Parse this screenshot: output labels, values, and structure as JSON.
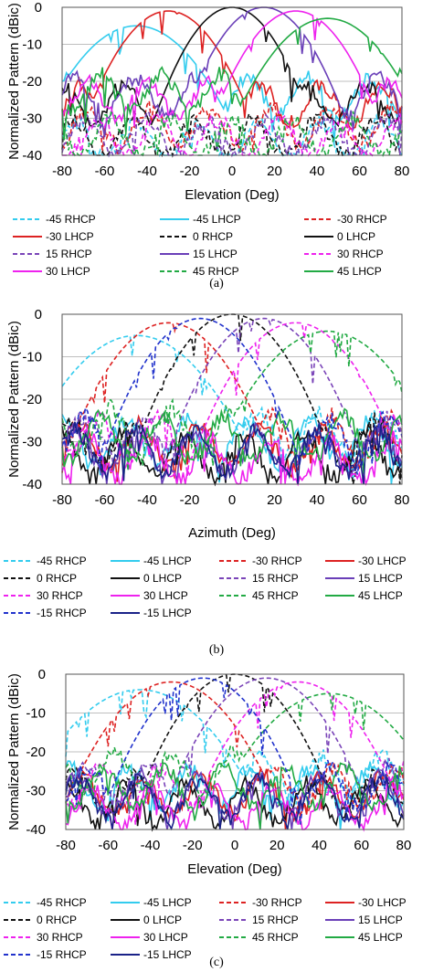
{
  "chart_data": [
    {
      "type": "line",
      "ylabel": "Normalized Pattern (dBic)",
      "xlabel": "Elevation (Deg)",
      "xlim": [
        -80,
        80
      ],
      "ylim": [
        -40,
        0
      ],
      "xticks": [
        -80,
        -60,
        -40,
        -20,
        0,
        20,
        40,
        60,
        80
      ],
      "yticks": [
        0,
        -10,
        -20,
        -30,
        -40
      ],
      "caption": "(a)",
      "series": [
        {
          "name": "-45 RHCP",
          "color": "#33ccee",
          "dashed": true,
          "peak": -45,
          "peak_level": -100,
          "floor": -34,
          "width": 50
        },
        {
          "name": "-45 LHCP",
          "color": "#33ccee",
          "dashed": false,
          "peak": -45,
          "peak_level": -5,
          "floor": -22,
          "width": 60
        },
        {
          "name": "-30 RHCP",
          "color": "#dd2222",
          "dashed": true,
          "peak": -30,
          "peak_level": -100,
          "floor": -30,
          "width": 50
        },
        {
          "name": "-30 LHCP",
          "color": "#dd2222",
          "dashed": false,
          "peak": -30,
          "peak_level": -1,
          "floor": -24,
          "width": 50
        },
        {
          "name": "0 RHCP",
          "color": "#111111",
          "dashed": true,
          "peak": 0,
          "peak_level": -100,
          "floor": -33,
          "width": 50
        },
        {
          "name": "0 LHCP",
          "color": "#111111",
          "dashed": false,
          "peak": 0,
          "peak_level": 0,
          "floor": -24,
          "width": 46
        },
        {
          "name": "15 RHCP",
          "color": "#7a44b8",
          "dashed": true,
          "peak": 15,
          "peak_level": -100,
          "floor": -33,
          "width": 50
        },
        {
          "name": "15 LHCP",
          "color": "#6a3fb8",
          "dashed": false,
          "peak": 15,
          "peak_level": 0,
          "floor": -22,
          "width": 48
        },
        {
          "name": "30 RHCP",
          "color": "#ee22ee",
          "dashed": true,
          "peak": 30,
          "peak_level": -100,
          "floor": -33,
          "width": 50
        },
        {
          "name": "30 LHCP",
          "color": "#ee22ee",
          "dashed": false,
          "peak": 30,
          "peak_level": -1,
          "floor": -23,
          "width": 50
        },
        {
          "name": "45 RHCP",
          "color": "#22aa44",
          "dashed": true,
          "peak": 45,
          "peak_level": -100,
          "floor": -33,
          "width": 50
        },
        {
          "name": "45 LHCP",
          "color": "#22aa44",
          "dashed": false,
          "peak": 45,
          "peak_level": -3,
          "floor": -21,
          "width": 58
        }
      ]
    },
    {
      "type": "line",
      "ylabel": "Normalized Pattern   (dBic)",
      "xlabel": "Azimuth (Deg)",
      "xlim": [
        -80,
        80
      ],
      "ylim": [
        -40,
        0
      ],
      "xticks": [
        -80,
        -60,
        -40,
        -20,
        0,
        20,
        40,
        60,
        80
      ],
      "yticks": [
        0,
        -10,
        -20,
        -30,
        -40
      ],
      "caption": "(b)",
      "series": [
        {
          "name": "-45 RHCP",
          "color": "#33ccee",
          "dashed": true,
          "peak": -45,
          "peak_level": -5,
          "floor": -26,
          "width": 70
        },
        {
          "name": "-45 LHCP",
          "color": "#33ccee",
          "dashed": false,
          "peak": -45,
          "peak_level": -100,
          "floor": -28,
          "width": 50
        },
        {
          "name": "-30 RHCP",
          "color": "#dd2222",
          "dashed": true,
          "peak": -30,
          "peak_level": -2,
          "floor": -27,
          "width": 60
        },
        {
          "name": "-30 LHCP",
          "color": "#dd2222",
          "dashed": false,
          "peak": -30,
          "peak_level": -100,
          "floor": -29,
          "width": 50
        },
        {
          "name": "0 RHCP",
          "color": "#111111",
          "dashed": true,
          "peak": 0,
          "peak_level": 0,
          "floor": -28,
          "width": 56
        },
        {
          "name": "0 LHCP",
          "color": "#111111",
          "dashed": false,
          "peak": 0,
          "peak_level": -100,
          "floor": -31,
          "width": 50
        },
        {
          "name": "15 RHCP",
          "color": "#7a44b8",
          "dashed": true,
          "peak": 15,
          "peak_level": -1,
          "floor": -27,
          "width": 56
        },
        {
          "name": "15 LHCP",
          "color": "#6a3fb8",
          "dashed": false,
          "peak": 15,
          "peak_level": -100,
          "floor": -30,
          "width": 50
        },
        {
          "name": "30 RHCP",
          "color": "#ee22ee",
          "dashed": true,
          "peak": 30,
          "peak_level": -2,
          "floor": -27,
          "width": 60
        },
        {
          "name": "30 LHCP",
          "color": "#ee22ee",
          "dashed": false,
          "peak": 30,
          "peak_level": -100,
          "floor": -32,
          "width": 50
        },
        {
          "name": "45 RHCP",
          "color": "#22aa44",
          "dashed": true,
          "peak": 45,
          "peak_level": -4,
          "floor": -25,
          "width": 68
        },
        {
          "name": "45 LHCP",
          "color": "#22aa44",
          "dashed": false,
          "peak": 45,
          "peak_level": -100,
          "floor": -27,
          "width": 50
        },
        {
          "name": "-15 RHCP",
          "color": "#2233cc",
          "dashed": true,
          "peak": -15,
          "peak_level": -1,
          "floor": -27,
          "width": 56
        },
        {
          "name": "-15 LHCP",
          "color": "#1a2288",
          "dashed": false,
          "peak": -15,
          "peak_level": -100,
          "floor": -30,
          "width": 50
        }
      ]
    },
    {
      "type": "line",
      "ylabel": "Normalized Pattern (dBic)",
      "xlabel": "Elevation (Deg)",
      "xlim": [
        -80,
        80
      ],
      "ylim": [
        -40,
        0
      ],
      "xticks": [
        -80,
        -60,
        -40,
        -20,
        0,
        20,
        40,
        60,
        80
      ],
      "yticks": [
        0,
        -10,
        -20,
        -30,
        -40
      ],
      "caption": "(c)",
      "series": [
        {
          "name": "-45 RHCP",
          "color": "#33ccee",
          "dashed": true,
          "peak": -45,
          "peak_level": -4,
          "floor": -24,
          "width": 72
        },
        {
          "name": "-45 LHCP",
          "color": "#33ccee",
          "dashed": false,
          "peak": -45,
          "peak_level": -100,
          "floor": -27,
          "width": 50
        },
        {
          "name": "-30 RHCP",
          "color": "#dd2222",
          "dashed": true,
          "peak": -30,
          "peak_level": -2,
          "floor": -27,
          "width": 62
        },
        {
          "name": "-30 LHCP",
          "color": "#dd2222",
          "dashed": false,
          "peak": -30,
          "peak_level": -100,
          "floor": -29,
          "width": 50
        },
        {
          "name": "0 RHCP",
          "color": "#111111",
          "dashed": true,
          "peak": 0,
          "peak_level": 0,
          "floor": -28,
          "width": 56
        },
        {
          "name": "0 LHCP",
          "color": "#111111",
          "dashed": false,
          "peak": 0,
          "peak_level": -100,
          "floor": -31,
          "width": 50
        },
        {
          "name": "15 RHCP",
          "color": "#7a44b8",
          "dashed": true,
          "peak": 15,
          "peak_level": -1,
          "floor": -26,
          "width": 58
        },
        {
          "name": "15 LHCP",
          "color": "#6a3fb8",
          "dashed": false,
          "peak": 15,
          "peak_level": -100,
          "floor": -29,
          "width": 50
        },
        {
          "name": "30 RHCP",
          "color": "#ee22ee",
          "dashed": true,
          "peak": 30,
          "peak_level": -2,
          "floor": -27,
          "width": 60
        },
        {
          "name": "30 LHCP",
          "color": "#ee22ee",
          "dashed": false,
          "peak": 30,
          "peak_level": -100,
          "floor": -32,
          "width": 50
        },
        {
          "name": "45 RHCP",
          "color": "#22aa44",
          "dashed": true,
          "peak": 45,
          "peak_level": -5,
          "floor": -23,
          "width": 70
        },
        {
          "name": "45 LHCP",
          "color": "#22aa44",
          "dashed": false,
          "peak": 45,
          "peak_level": -100,
          "floor": -27,
          "width": 50
        },
        {
          "name": "-15 RHCP",
          "color": "#2233cc",
          "dashed": true,
          "peak": -15,
          "peak_level": -1,
          "floor": -27,
          "width": 56
        },
        {
          "name": "-15 LHCP",
          "color": "#1a2288",
          "dashed": false,
          "peak": -15,
          "peak_level": -100,
          "floor": -30,
          "width": 50
        }
      ]
    }
  ]
}
